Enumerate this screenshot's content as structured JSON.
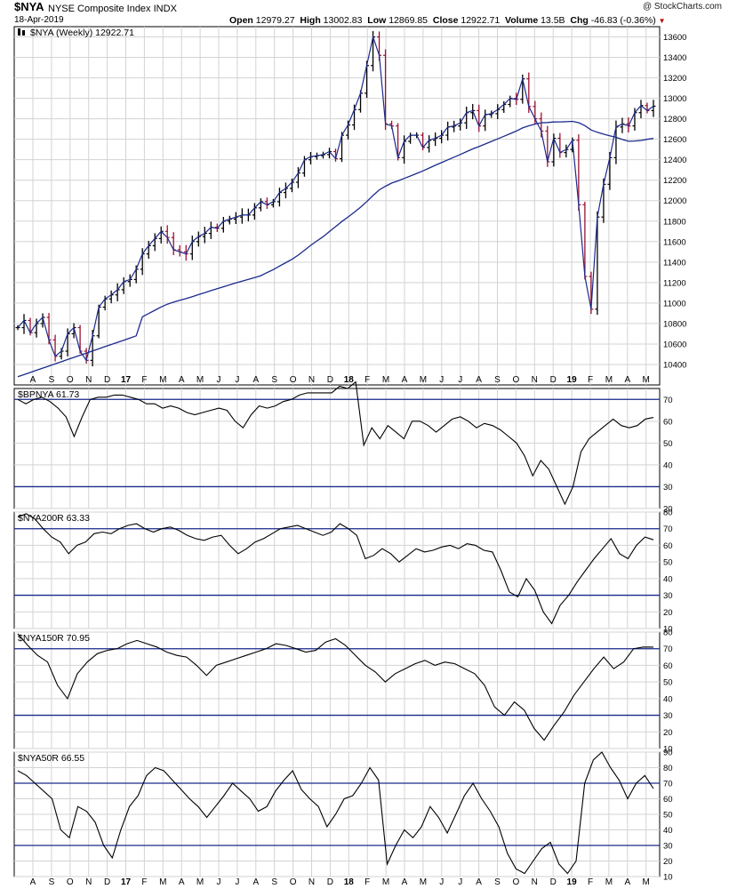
{
  "header": {
    "symbol": "$NYA",
    "name": "NYSE Composite Index",
    "exchange": "INDX",
    "date": "18-Apr-2019",
    "credit": "@ StockCharts.com",
    "open_label": "Open",
    "open": "12979.27",
    "high_label": "High",
    "high": "13002.83",
    "low_label": "Low",
    "low": "12869.85",
    "close_label": "Close",
    "close": "12922.71",
    "volume_label": "Volume",
    "volume": "13.5B",
    "chg_label": "Chg",
    "chg": "-46.83 (-0.36%)",
    "chg_icon": "down-triangle-icon"
  },
  "colors": {
    "up": "#000000",
    "down": "#9b1030",
    "ma": "#1a2a8c",
    "refline": "#1a2a8c",
    "grid": "#d3d3d3"
  },
  "x_axis_labels": [
    "A",
    "S",
    "O",
    "N",
    "D",
    "17",
    "F",
    "M",
    "A",
    "M",
    "J",
    "J",
    "A",
    "S",
    "O",
    "N",
    "D",
    "18",
    "F",
    "M",
    "A",
    "M",
    "J",
    "J",
    "A",
    "S",
    "O",
    "N",
    "D",
    "19",
    "F",
    "M",
    "A",
    "M"
  ],
  "chart_data": [
    {
      "type": "ohlc",
      "title": "$NYA (Weekly) 12922.71",
      "period": "weekly",
      "x_start": "2016-08-05",
      "x_end": "2019-04-18",
      "ylim": [
        10200,
        13700
      ],
      "yticks": [
        10400,
        10600,
        10800,
        11000,
        11200,
        11400,
        11600,
        11800,
        12000,
        12200,
        12400,
        12600,
        12800,
        13000,
        13200,
        13400,
        13600
      ],
      "close": [
        10760,
        10830,
        10710,
        10800,
        10860,
        10640,
        10480,
        10530,
        10700,
        10760,
        10530,
        10440,
        10680,
        10960,
        11040,
        11080,
        11130,
        11210,
        11230,
        11330,
        11480,
        11560,
        11630,
        11700,
        11640,
        11520,
        11500,
        11480,
        11600,
        11650,
        11680,
        11740,
        11730,
        11800,
        11820,
        11840,
        11860,
        11860,
        11930,
        11990,
        11960,
        11990,
        12080,
        12120,
        12180,
        12270,
        12400,
        12430,
        12440,
        12450,
        12480,
        12410,
        12640,
        12740,
        12890,
        13050,
        13320,
        13600,
        13420,
        12750,
        12730,
        12420,
        12580,
        12640,
        12640,
        12520,
        12590,
        12610,
        12640,
        12720,
        12730,
        12760,
        12860,
        12880,
        12730,
        12840,
        12850,
        12890,
        12940,
        13000,
        12990,
        13190,
        12920,
        12800,
        12680,
        12380,
        12610,
        12470,
        12500,
        12590,
        11960,
        11260,
        10940,
        11840,
        12160,
        12420,
        12720,
        12750,
        12730,
        12860,
        12930,
        12880,
        12922.71
      ],
      "ma_label": "40-week moving average",
      "ma_start_value": 10280
    },
    {
      "type": "line",
      "title": "$BPNYA 61.73",
      "ylim": [
        20,
        75
      ],
      "yticks": [
        20,
        30,
        40,
        50,
        60,
        70
      ],
      "reference_lines": [
        70,
        30
      ],
      "values": [
        70,
        68,
        70,
        71,
        69,
        66,
        62,
        53,
        62,
        70,
        71,
        71,
        72,
        72,
        71,
        70,
        68,
        68,
        66,
        67,
        66,
        64,
        63,
        64,
        65,
        66,
        65,
        60,
        57,
        63,
        67,
        66,
        67,
        69,
        70,
        72,
        73,
        73,
        73,
        73,
        76,
        75,
        78,
        49,
        57,
        52,
        58,
        55,
        52,
        60,
        60,
        58,
        55,
        58,
        61,
        62,
        60,
        57,
        59,
        58,
        56,
        53,
        50,
        44,
        35,
        42,
        38,
        30,
        22,
        30,
        46,
        52,
        55,
        58,
        61,
        58,
        57,
        58,
        61,
        61.73
      ]
    },
    {
      "type": "line",
      "title": "$NYA200R 63.33",
      "ylim": [
        10,
        80
      ],
      "yticks": [
        10,
        20,
        30,
        40,
        50,
        60,
        70,
        80
      ],
      "reference_lines": [
        70,
        30
      ],
      "values": [
        77,
        79,
        76,
        70,
        65,
        62,
        55,
        60,
        62,
        67,
        68,
        67,
        70,
        72,
        73,
        70,
        68,
        70,
        71,
        69,
        66,
        64,
        63,
        65,
        66,
        60,
        55,
        58,
        62,
        64,
        67,
        70,
        71,
        72,
        70,
        68,
        66,
        68,
        73,
        70,
        66,
        52,
        54,
        58,
        55,
        50,
        54,
        58,
        56,
        57,
        59,
        60,
        58,
        61,
        60,
        57,
        56,
        45,
        32,
        29,
        40,
        33,
        20,
        13,
        24,
        30,
        38,
        45,
        52,
        58,
        64,
        55,
        52,
        60,
        65,
        63.33
      ]
    },
    {
      "type": "line",
      "title": "$NYA150R 70.95",
      "ylim": [
        10,
        80
      ],
      "yticks": [
        10,
        20,
        30,
        40,
        50,
        60,
        70,
        80
      ],
      "reference_lines": [
        70,
        30
      ],
      "values": [
        79,
        72,
        66,
        62,
        48,
        40,
        55,
        62,
        67,
        69,
        70,
        73,
        75,
        73,
        71,
        68,
        66,
        65,
        60,
        54,
        60,
        62,
        64,
        66,
        68,
        70,
        73,
        72,
        70,
        68,
        69,
        74,
        76,
        72,
        66,
        60,
        56,
        50,
        55,
        58,
        61,
        63,
        60,
        62,
        61,
        58,
        55,
        48,
        35,
        30,
        38,
        33,
        22,
        15,
        24,
        32,
        42,
        50,
        58,
        65,
        58,
        62,
        70,
        71,
        70.95
      ]
    },
    {
      "type": "line",
      "title": "$NYA50R 66.55",
      "ylim": [
        10,
        90
      ],
      "yticks": [
        10,
        20,
        30,
        40,
        50,
        60,
        70,
        80,
        90
      ],
      "reference_lines": [
        70,
        30
      ],
      "values": [
        78,
        75,
        70,
        65,
        60,
        40,
        35,
        55,
        52,
        45,
        30,
        22,
        40,
        55,
        62,
        75,
        80,
        78,
        72,
        66,
        60,
        55,
        48,
        55,
        62,
        70,
        65,
        60,
        52,
        55,
        65,
        72,
        78,
        66,
        60,
        55,
        42,
        50,
        60,
        62,
        70,
        80,
        72,
        18,
        30,
        40,
        35,
        42,
        55,
        48,
        38,
        50,
        62,
        70,
        60,
        52,
        42,
        25,
        15,
        12,
        20,
        28,
        32,
        18,
        12,
        20,
        70,
        85,
        90,
        80,
        72,
        60,
        70,
        75,
        66.55
      ]
    }
  ]
}
